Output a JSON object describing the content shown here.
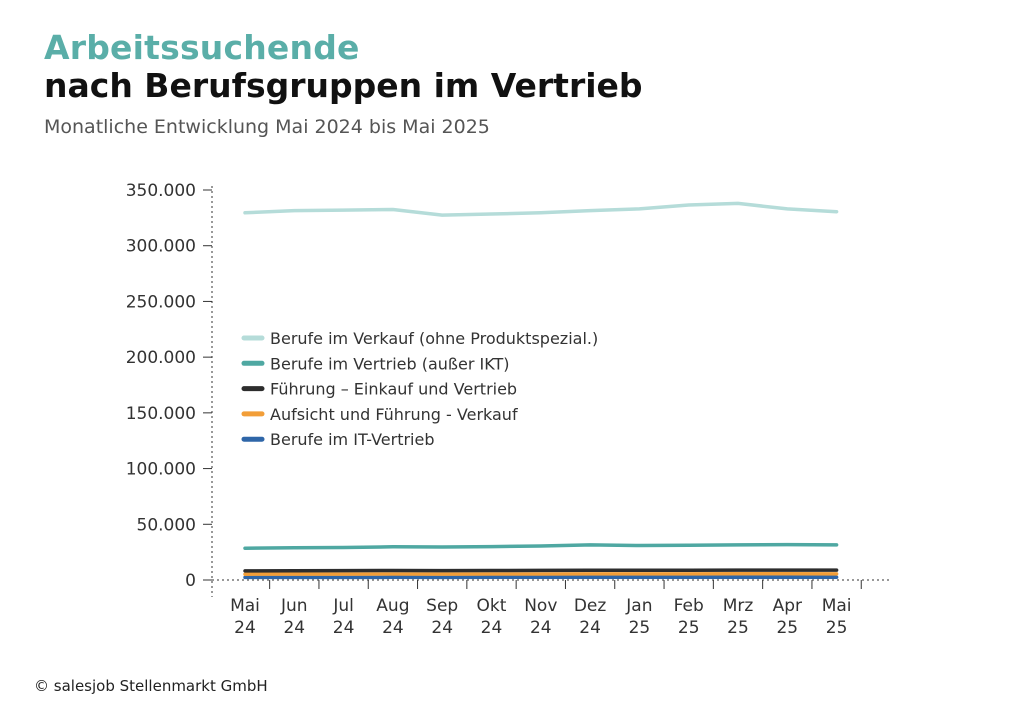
{
  "header": {
    "title_line1": "Arbeitssuchende",
    "title_line2": "nach Berufsgruppen im Vertrieb",
    "subtitle": "Monatliche Entwicklung Mai 2024 bis Mai 2025"
  },
  "footer": {
    "copyright": "© salesjob Stellenmarkt GmbH"
  },
  "chart_data": {
    "type": "line",
    "title": "Arbeitssuchende nach Berufsgruppen im Vertrieb",
    "subtitle": "Monatliche Entwicklung Mai 2024 bis Mai 2025",
    "xlabel": "",
    "ylabel": "",
    "ylim": [
      0,
      350000
    ],
    "yticks": [
      0,
      50000,
      100000,
      150000,
      200000,
      250000,
      300000,
      350000
    ],
    "ytick_labels": [
      "0",
      "50.000",
      "100.000",
      "150.000",
      "200.000",
      "250.000",
      "300.000",
      "350.000"
    ],
    "categories": [
      [
        "Mai",
        "24"
      ],
      [
        "Jun",
        "24"
      ],
      [
        "Jul",
        "24"
      ],
      [
        "Aug",
        "24"
      ],
      [
        "Sep",
        "24"
      ],
      [
        "Okt",
        "24"
      ],
      [
        "Nov",
        "24"
      ],
      [
        "Dez",
        "24"
      ],
      [
        "Jan",
        "25"
      ],
      [
        "Feb",
        "25"
      ],
      [
        "Mrz",
        "25"
      ],
      [
        "Apr",
        "25"
      ],
      [
        "Mai",
        "25"
      ]
    ],
    "legend_position": "center-left",
    "series": [
      {
        "name": "Berufe im Verkauf (ohne Produktspezial.)",
        "color": "#b5dcd9",
        "values": [
          329500,
          331500,
          332000,
          332500,
          327500,
          328500,
          329500,
          331500,
          333000,
          336500,
          338000,
          333000,
          330500
        ]
      },
      {
        "name": "Berufe im Vertrieb (außer IKT)",
        "color": "#4fa8a2",
        "values": [
          28500,
          29000,
          29200,
          29800,
          29600,
          30000,
          30500,
          31500,
          31000,
          31200,
          31500,
          31800,
          31500
        ]
      },
      {
        "name": "Führung – Einkauf und Vertrieb",
        "color": "#2d2d2d",
        "values": [
          8200,
          8300,
          8400,
          8500,
          8400,
          8500,
          8600,
          8800,
          8700,
          8800,
          8900,
          8900,
          8900
        ]
      },
      {
        "name": "Aufsicht und Führung - Verkauf",
        "color": "#f29e38",
        "values": [
          5200,
          5250,
          5300,
          5350,
          5300,
          5350,
          5400,
          5500,
          5450,
          5500,
          5550,
          5550,
          5500
        ]
      },
      {
        "name": "Berufe im IT-Vertrieb",
        "color": "#2f66a8",
        "values": [
          2300,
          2320,
          2350,
          2380,
          2350,
          2380,
          2400,
          2450,
          2420,
          2450,
          2480,
          2480,
          2450
        ]
      }
    ]
  }
}
